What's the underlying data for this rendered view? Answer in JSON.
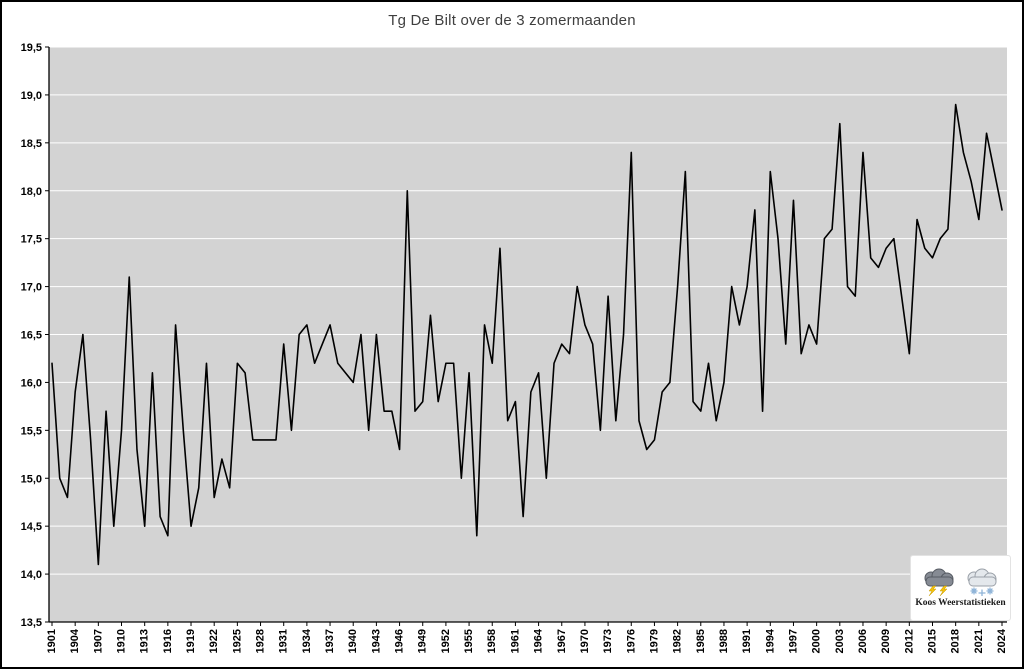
{
  "page": {
    "title": "Tg De Bilt over de 3 zomermaanden"
  },
  "chart_data": {
    "type": "line",
    "title": "Tg De Bilt over de 3 zomermaanden",
    "x_start": 1901,
    "x_end": 2024,
    "values": [
      16.2,
      15.0,
      14.8,
      15.9,
      16.5,
      15.4,
      14.1,
      15.7,
      14.5,
      15.5,
      17.1,
      15.3,
      14.5,
      16.1,
      14.6,
      14.4,
      16.6,
      15.5,
      14.5,
      14.9,
      16.2,
      14.8,
      15.2,
      14.9,
      16.2,
      16.1,
      15.4,
      15.4,
      15.4,
      15.4,
      16.4,
      15.5,
      16.5,
      16.6,
      16.2,
      16.4,
      16.6,
      16.2,
      16.1,
      16.0,
      16.5,
      15.5,
      16.5,
      15.7,
      15.7,
      15.3,
      18.0,
      15.7,
      15.8,
      16.7,
      15.8,
      16.2,
      16.2,
      15.0,
      16.1,
      14.4,
      16.6,
      16.2,
      17.4,
      15.6,
      15.8,
      14.6,
      15.9,
      16.1,
      15.0,
      16.2,
      16.4,
      16.3,
      17.0,
      16.6,
      16.4,
      15.5,
      16.9,
      15.6,
      16.5,
      18.4,
      15.6,
      15.3,
      15.4,
      15.9,
      16.0,
      17.0,
      18.2,
      15.8,
      15.7,
      16.2,
      15.6,
      16.0,
      17.0,
      16.6,
      17.0,
      17.8,
      15.7,
      18.2,
      17.5,
      16.4,
      17.9,
      16.3,
      16.6,
      16.4,
      17.5,
      17.6,
      18.7,
      17.0,
      16.9,
      18.4,
      17.3,
      17.2,
      17.4,
      17.5,
      16.9,
      16.3,
      17.7,
      17.4,
      17.3,
      17.5,
      17.6,
      18.9,
      18.4,
      18.1,
      17.7,
      18.6,
      18.2,
      17.8
    ],
    "ylim": [
      13.5,
      19.5
    ],
    "ytick_step": 0.5,
    "ytick_labels": [
      "13,5",
      "14,0",
      "14,5",
      "15,0",
      "15,5",
      "16,0",
      "16,5",
      "17,0",
      "17,5",
      "18,0",
      "18,5",
      "19,0",
      "19,5"
    ],
    "xtick_labels": [
      "1901",
      "1904",
      "1907",
      "1910",
      "1913",
      "1916",
      "1919",
      "1922",
      "1925",
      "1928",
      "1931",
      "1934",
      "1937",
      "1940",
      "1943",
      "1946",
      "1949",
      "1952",
      "1955",
      "1958",
      "1961",
      "1964",
      "1967",
      "1970",
      "1973",
      "1976",
      "1979",
      "1982",
      "1985",
      "1988",
      "1991",
      "1994",
      "1997",
      "2000",
      "2003",
      "2006",
      "2009",
      "2012",
      "2015",
      "2018",
      "2021",
      "2024"
    ],
    "grid": "horizontal",
    "legend": "none",
    "decimal_separator": ",",
    "colors": {
      "line": "#000000",
      "plot_bg": "#d3d3d3",
      "grid": "#ffffff",
      "axis": "#000000",
      "page_bg": "#ffffff"
    }
  },
  "logo": {
    "text": "Koos Weerstatistieken",
    "icons": [
      "storm-cloud-icon",
      "snow-cloud-icon"
    ]
  }
}
